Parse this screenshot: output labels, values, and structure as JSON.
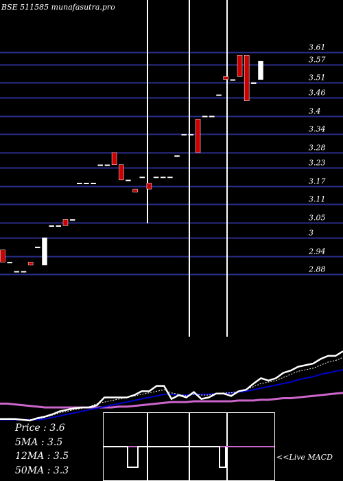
{
  "header": {
    "title": "BSE 511585 munafasutra.pro"
  },
  "colors": {
    "background": "#000000",
    "grid": "#2a2e8c",
    "up_candle": "#ffffff",
    "down_candle": "#cc0000",
    "price_line": "#ffffff",
    "ma_short": "#ffffff",
    "ma_medium": "#0000cc",
    "ma_long": "#cc66cc",
    "vertical_markers": "#ffffff"
  },
  "chart_data": {
    "type": "candlestick",
    "title": "BSE 511585 munafasutra.pro",
    "y_ticks": [
      3.61,
      3.57,
      3.51,
      3.46,
      3.4,
      3.34,
      3.28,
      3.23,
      3.17,
      3.11,
      3.05,
      3,
      2.94,
      2.88
    ],
    "ylim": [
      2.86,
      3.63
    ],
    "grid": true,
    "candles": [
      {
        "o": 2.96,
        "h": 2.96,
        "l": 2.92,
        "c": 2.92
      },
      {
        "o": 2.92,
        "h": 2.92,
        "l": 2.92,
        "c": 2.92
      },
      {
        "o": 2.89,
        "h": 2.89,
        "l": 2.89,
        "c": 2.89
      },
      {
        "o": 2.89,
        "h": 2.89,
        "l": 2.89,
        "c": 2.89
      },
      {
        "o": 2.92,
        "h": 2.92,
        "l": 2.91,
        "c": 2.91
      },
      {
        "o": 2.97,
        "h": 2.97,
        "l": 2.97,
        "c": 2.97
      },
      {
        "o": 2.91,
        "h": 3.0,
        "l": 2.91,
        "c": 3.0
      },
      {
        "o": 3.04,
        "h": 3.04,
        "l": 3.04,
        "c": 3.04
      },
      {
        "o": 3.04,
        "h": 3.04,
        "l": 3.04,
        "c": 3.04
      },
      {
        "o": 3.06,
        "h": 3.06,
        "l": 3.04,
        "c": 3.04
      },
      {
        "o": 3.06,
        "h": 3.06,
        "l": 3.06,
        "c": 3.06
      },
      {
        "o": 3.18,
        "h": 3.18,
        "l": 3.18,
        "c": 3.18
      },
      {
        "o": 3.18,
        "h": 3.18,
        "l": 3.18,
        "c": 3.18
      },
      {
        "o": 3.18,
        "h": 3.18,
        "l": 3.18,
        "c": 3.18
      },
      {
        "o": 3.24,
        "h": 3.24,
        "l": 3.24,
        "c": 3.24
      },
      {
        "o": 3.24,
        "h": 3.24,
        "l": 3.24,
        "c": 3.24
      },
      {
        "o": 3.28,
        "h": 3.28,
        "l": 3.24,
        "c": 3.24
      },
      {
        "o": 3.24,
        "h": 3.24,
        "l": 3.19,
        "c": 3.19
      },
      {
        "o": 3.19,
        "h": 3.19,
        "l": 3.19,
        "c": 3.19
      },
      {
        "o": 3.16,
        "h": 3.16,
        "l": 3.15,
        "c": 3.15
      },
      {
        "o": 3.2,
        "h": 3.2,
        "l": 3.2,
        "c": 3.2
      },
      {
        "o": 3.18,
        "h": 3.18,
        "l": 3.16,
        "c": 3.16
      },
      {
        "o": 3.2,
        "h": 3.2,
        "l": 3.2,
        "c": 3.2
      },
      {
        "o": 3.2,
        "h": 3.2,
        "l": 3.2,
        "c": 3.2
      },
      {
        "o": 3.2,
        "h": 3.2,
        "l": 3.2,
        "c": 3.2
      },
      {
        "o": 3.27,
        "h": 3.27,
        "l": 3.27,
        "c": 3.27
      },
      {
        "o": 3.34,
        "h": 3.34,
        "l": 3.34,
        "c": 3.34
      },
      {
        "o": 3.34,
        "h": 3.34,
        "l": 3.34,
        "c": 3.34
      },
      {
        "o": 3.39,
        "h": 3.39,
        "l": 3.28,
        "c": 3.28
      },
      {
        "o": 3.4,
        "h": 3.4,
        "l": 3.4,
        "c": 3.4
      },
      {
        "o": 3.4,
        "h": 3.4,
        "l": 3.4,
        "c": 3.4
      },
      {
        "o": 3.47,
        "h": 3.47,
        "l": 3.47,
        "c": 3.47
      },
      {
        "o": 3.53,
        "h": 3.53,
        "l": 3.52,
        "c": 3.52
      },
      {
        "o": 3.52,
        "h": 3.52,
        "l": 3.52,
        "c": 3.52
      },
      {
        "o": 3.6,
        "h": 3.6,
        "l": 3.53,
        "c": 3.53
      },
      {
        "o": 3.6,
        "h": 3.6,
        "l": 3.45,
        "c": 3.45
      },
      {
        "o": 3.51,
        "h": 3.51,
        "l": 3.51,
        "c": 3.51
      },
      {
        "o": 3.52,
        "h": 3.58,
        "l": 3.52,
        "c": 3.58
      }
    ],
    "indicator_lines": {
      "price": [
        2,
        2,
        2,
        1,
        0,
        3,
        5,
        8,
        12,
        14,
        16,
        17,
        17,
        20,
        30,
        30,
        30,
        30,
        33,
        38,
        38,
        45,
        45,
        28,
        33,
        30,
        37,
        28,
        30,
        35,
        35,
        32,
        38,
        40,
        48,
        55,
        52,
        55,
        62,
        65,
        70,
        72,
        74,
        80,
        84,
        84,
        90
      ],
      "ma5": [
        2,
        2,
        2,
        1,
        1,
        2,
        4,
        7,
        10,
        12,
        14,
        16,
        18,
        22,
        24,
        26,
        28,
        30,
        32,
        34,
        36,
        38,
        40,
        36,
        34,
        32,
        34,
        33,
        33,
        35,
        36,
        36,
        38,
        40,
        44,
        48,
        50,
        52,
        56,
        60,
        64,
        66,
        68,
        72,
        76,
        78,
        82
      ],
      "ma12": [
        1,
        1,
        1,
        1,
        1,
        1,
        2,
        4,
        6,
        8,
        10,
        12,
        14,
        16,
        18,
        20,
        22,
        24,
        26,
        28,
        30,
        32,
        34,
        34,
        33,
        33,
        34,
        34,
        34,
        35,
        35,
        36,
        37,
        38,
        40,
        42,
        44,
        46,
        48,
        50,
        53,
        55,
        57,
        60,
        62,
        64,
        66
      ],
      "ma50": [
        22,
        22,
        21,
        20,
        19,
        18,
        17,
        17,
        17,
        17,
        17,
        17,
        17,
        17,
        17,
        17,
        18,
        18,
        19,
        20,
        21,
        22,
        23,
        24,
        24,
        24,
        25,
        25,
        25,
        25,
        25,
        25,
        26,
        26,
        26,
        27,
        27,
        28,
        29,
        29,
        30,
        31,
        32,
        33,
        34,
        35,
        36
      ]
    },
    "stats": {
      "price": "Price   : 3.6",
      "ma5": "5MA : 3.5",
      "ma12": "12MA : 3.5",
      "ma50": "50MA : 3.3"
    },
    "macd_label": "<<Live MACD"
  }
}
